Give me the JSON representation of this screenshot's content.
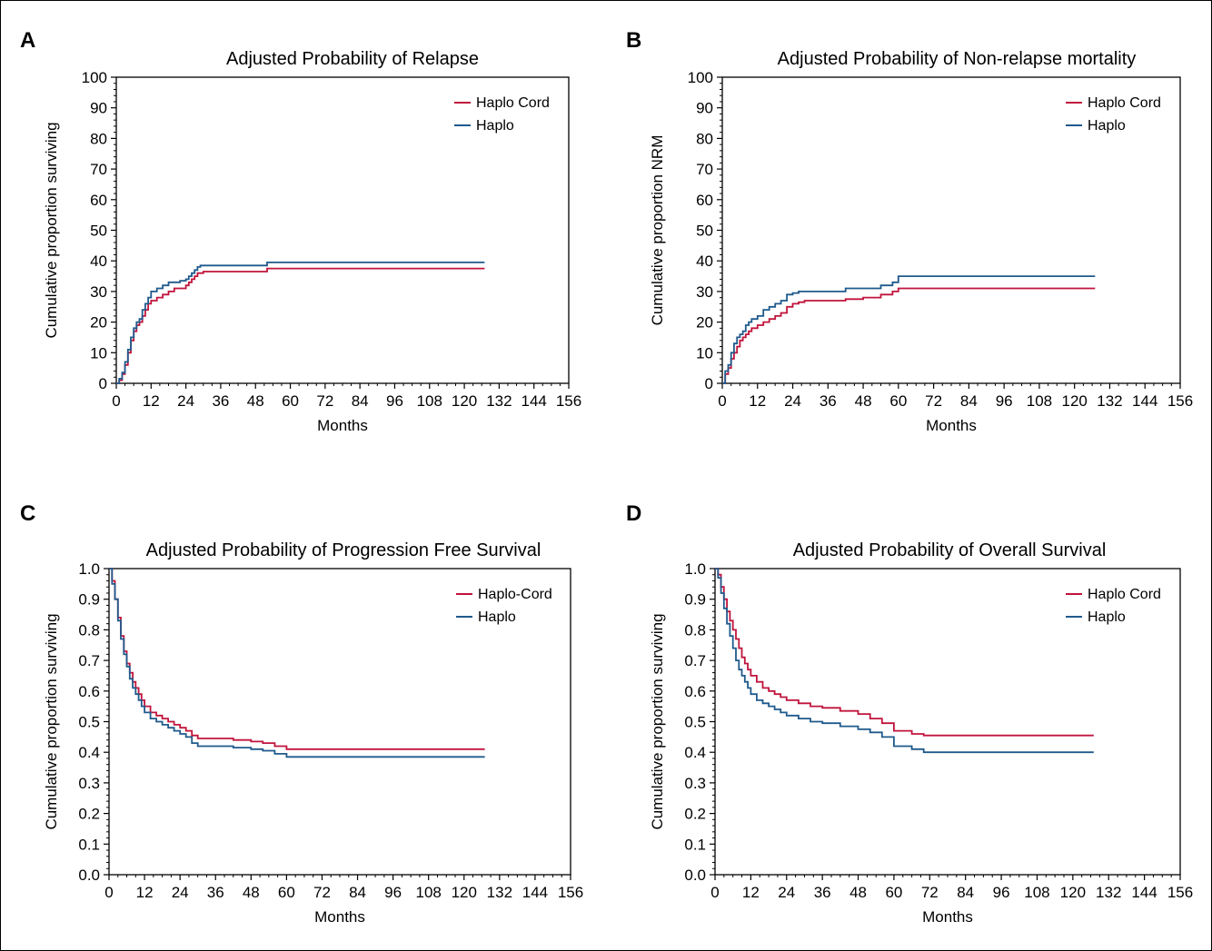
{
  "colors": {
    "haplo_cord": "#c0143c",
    "haplo": "#1f5a8c",
    "axis": "#000000"
  },
  "chart_data": [
    {
      "panel": "A",
      "type": "line",
      "title": "Adjusted Probability of Relapse",
      "xlabel": "Months",
      "ylabel": "Cumulative proportion surviving",
      "xlim": [
        0,
        156
      ],
      "ylim": [
        0,
        100
      ],
      "xticks": [
        "0",
        "12",
        "24",
        "36",
        "48",
        "60",
        "72",
        "84",
        "96",
        "108",
        "120",
        "132",
        "144",
        "156"
      ],
      "yticks": [
        "0",
        "10",
        "20",
        "30",
        "40",
        "50",
        "60",
        "70",
        "80",
        "90",
        "100"
      ],
      "legend_position": "top-right",
      "step": true,
      "series": [
        {
          "name": "Haplo Cord",
          "color": "#c0143c",
          "x": [
            0,
            1,
            2,
            3,
            4,
            5,
            6,
            7,
            8,
            9,
            10,
            11,
            12,
            14,
            16,
            18,
            20,
            22,
            24,
            25,
            26,
            27,
            28,
            29,
            30,
            40,
            50,
            52,
            127
          ],
          "y": [
            0,
            1,
            3,
            6,
            10,
            14,
            17,
            19,
            20,
            22,
            24,
            26,
            27,
            28,
            29,
            30,
            31,
            31,
            32,
            33,
            34,
            35,
            36,
            36,
            36.5,
            36.5,
            36.5,
            37.5,
            37.5
          ]
        },
        {
          "name": "Haplo",
          "color": "#1f5a8c",
          "x": [
            0,
            1,
            2,
            3,
            4,
            5,
            6,
            7,
            8,
            9,
            10,
            11,
            12,
            14,
            16,
            18,
            20,
            22,
            24,
            25,
            26,
            27,
            28,
            29,
            30,
            40,
            50,
            52,
            127
          ],
          "y": [
            0,
            1.5,
            3.5,
            7,
            11,
            15,
            18,
            20,
            21,
            24,
            26,
            28,
            30,
            31,
            32,
            33,
            33,
            33.5,
            34,
            35,
            36,
            37,
            38,
            38.5,
            38.5,
            38.5,
            38.5,
            39.5,
            39.5
          ]
        }
      ]
    },
    {
      "panel": "B",
      "type": "line",
      "title": "Adjusted Probability of Non-relapse mortality",
      "xlabel": "Months",
      "ylabel": "Cumulative proportion NRM",
      "xlim": [
        0,
        156
      ],
      "ylim": [
        0,
        100
      ],
      "xticks": [
        "0",
        "12",
        "24",
        "36",
        "48",
        "60",
        "72",
        "84",
        "96",
        "108",
        "120",
        "132",
        "144",
        "156"
      ],
      "yticks": [
        "0",
        "10",
        "20",
        "30",
        "40",
        "50",
        "60",
        "70",
        "80",
        "90",
        "100"
      ],
      "legend_position": "top-right",
      "step": true,
      "series": [
        {
          "name": "Haplo Cord",
          "color": "#c0143c",
          "x": [
            0,
            1,
            2,
            3,
            4,
            5,
            6,
            7,
            8,
            9,
            10,
            12,
            14,
            16,
            18,
            20,
            22,
            24,
            26,
            28,
            36,
            42,
            48,
            54,
            58,
            60,
            127
          ],
          "y": [
            0,
            3,
            5,
            8,
            10,
            12,
            14,
            15,
            16,
            17,
            18,
            19,
            20,
            21,
            22,
            23,
            25,
            26,
            26.5,
            27,
            27,
            27.5,
            28,
            29,
            30,
            31,
            31
          ]
        },
        {
          "name": "Haplo",
          "color": "#1f5a8c",
          "x": [
            0,
            1,
            2,
            3,
            4,
            5,
            6,
            7,
            8,
            9,
            10,
            12,
            14,
            16,
            18,
            20,
            22,
            24,
            26,
            28,
            36,
            42,
            48,
            54,
            58,
            60,
            127
          ],
          "y": [
            0,
            4,
            6,
            10,
            13,
            15,
            16,
            17,
            19,
            20,
            21,
            22,
            24,
            25,
            26,
            27,
            29,
            29.5,
            30,
            30,
            30,
            31,
            31,
            32,
            33,
            35,
            35
          ]
        }
      ]
    },
    {
      "panel": "C",
      "type": "line",
      "title": "Adjusted Probability of Progression Free Survival",
      "xlabel": "Months",
      "ylabel": "Cumulative proportion surviving",
      "xlim": [
        0,
        156
      ],
      "ylim": [
        0,
        1
      ],
      "xticks": [
        "0",
        "12",
        "24",
        "36",
        "48",
        "60",
        "72",
        "84",
        "96",
        "108",
        "120",
        "132",
        "144",
        "156"
      ],
      "yticks": [
        "0.0",
        "0.1",
        "0.2",
        "0.3",
        "0.4",
        "0.5",
        "0.6",
        "0.7",
        "0.8",
        "0.9",
        "1.0"
      ],
      "legend_position": "top-right",
      "step": true,
      "series": [
        {
          "name": "Haplo-Cord",
          "color": "#c0143c",
          "x": [
            0,
            1,
            2,
            3,
            4,
            5,
            6,
            7,
            8,
            9,
            10,
            11,
            12,
            14,
            16,
            18,
            20,
            22,
            24,
            26,
            28,
            30,
            36,
            42,
            48,
            52,
            56,
            60,
            127
          ],
          "y": [
            1.0,
            0.96,
            0.9,
            0.84,
            0.78,
            0.73,
            0.69,
            0.66,
            0.63,
            0.61,
            0.59,
            0.57,
            0.55,
            0.53,
            0.52,
            0.51,
            0.5,
            0.49,
            0.48,
            0.47,
            0.455,
            0.445,
            0.445,
            0.44,
            0.435,
            0.43,
            0.42,
            0.41,
            0.41
          ]
        },
        {
          "name": "Haplo",
          "color": "#1f5a8c",
          "x": [
            0,
            1,
            2,
            3,
            4,
            5,
            6,
            7,
            8,
            9,
            10,
            11,
            12,
            14,
            16,
            18,
            20,
            22,
            24,
            26,
            28,
            30,
            36,
            42,
            48,
            52,
            56,
            60,
            127
          ],
          "y": [
            1.0,
            0.95,
            0.9,
            0.83,
            0.77,
            0.72,
            0.68,
            0.64,
            0.61,
            0.59,
            0.57,
            0.55,
            0.53,
            0.51,
            0.5,
            0.49,
            0.48,
            0.47,
            0.46,
            0.45,
            0.43,
            0.42,
            0.42,
            0.415,
            0.41,
            0.405,
            0.395,
            0.385,
            0.385
          ]
        }
      ]
    },
    {
      "panel": "D",
      "type": "line",
      "title": "Adjusted Probability of Overall Survival",
      "xlabel": "Months",
      "ylabel": "Cumulative proportion surviving",
      "xlim": [
        0,
        156
      ],
      "ylim": [
        0,
        1
      ],
      "xticks": [
        "0",
        "12",
        "24",
        "36",
        "48",
        "60",
        "72",
        "84",
        "96",
        "108",
        "120",
        "132",
        "144",
        "156"
      ],
      "yticks": [
        "0.0",
        "0.1",
        "0.2",
        "0.3",
        "0.4",
        "0.5",
        "0.6",
        "0.7",
        "0.8",
        "0.9",
        "1.0"
      ],
      "legend_position": "top-right",
      "step": true,
      "series": [
        {
          "name": "Haplo Cord",
          "color": "#c0143c",
          "x": [
            0,
            1,
            2,
            3,
            4,
            5,
            6,
            7,
            8,
            9,
            10,
            11,
            12,
            14,
            16,
            18,
            20,
            22,
            24,
            28,
            32,
            36,
            42,
            48,
            52,
            56,
            60,
            66,
            70,
            127
          ],
          "y": [
            1.0,
            0.98,
            0.94,
            0.9,
            0.86,
            0.83,
            0.8,
            0.77,
            0.74,
            0.71,
            0.69,
            0.67,
            0.65,
            0.63,
            0.61,
            0.6,
            0.59,
            0.58,
            0.57,
            0.56,
            0.55,
            0.545,
            0.535,
            0.525,
            0.51,
            0.495,
            0.47,
            0.46,
            0.455,
            0.455
          ]
        },
        {
          "name": "Haplo",
          "color": "#1f5a8c",
          "x": [
            0,
            1,
            2,
            3,
            4,
            5,
            6,
            7,
            8,
            9,
            10,
            11,
            12,
            14,
            16,
            18,
            20,
            22,
            24,
            28,
            32,
            36,
            42,
            48,
            52,
            56,
            60,
            66,
            70,
            127
          ],
          "y": [
            1.0,
            0.97,
            0.92,
            0.87,
            0.82,
            0.78,
            0.74,
            0.7,
            0.67,
            0.65,
            0.63,
            0.61,
            0.59,
            0.57,
            0.56,
            0.55,
            0.54,
            0.53,
            0.52,
            0.51,
            0.5,
            0.495,
            0.485,
            0.475,
            0.465,
            0.45,
            0.42,
            0.41,
            0.4,
            0.4
          ]
        }
      ]
    }
  ]
}
